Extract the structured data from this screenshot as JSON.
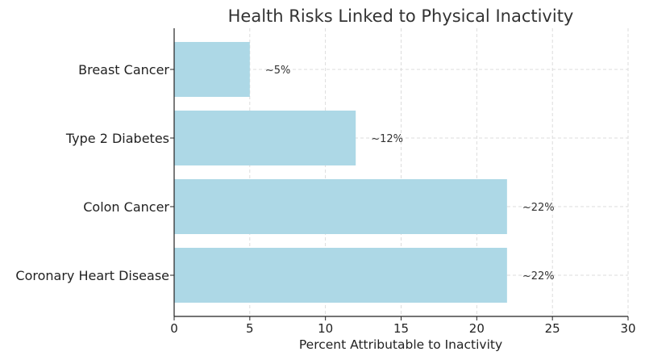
{
  "chart_data": {
    "type": "bar",
    "orientation": "horizontal",
    "title": "Health Risks Linked to Physical Inactivity",
    "xlabel": "Percent Attributable to Inactivity",
    "ylabel": "",
    "categories": [
      "Coronary Heart Disease",
      "Colon Cancer",
      "Type 2 Diabetes",
      "Breast Cancer"
    ],
    "values": [
      22,
      22,
      12,
      5
    ],
    "data_labels": [
      "~22%",
      "~22%",
      "~12%",
      "~5%"
    ],
    "xlim": [
      0,
      30
    ],
    "xticks": [
      0,
      5,
      10,
      15,
      20,
      25,
      30
    ],
    "bar_color": "#add8e6",
    "grid": true,
    "legend": "none"
  }
}
